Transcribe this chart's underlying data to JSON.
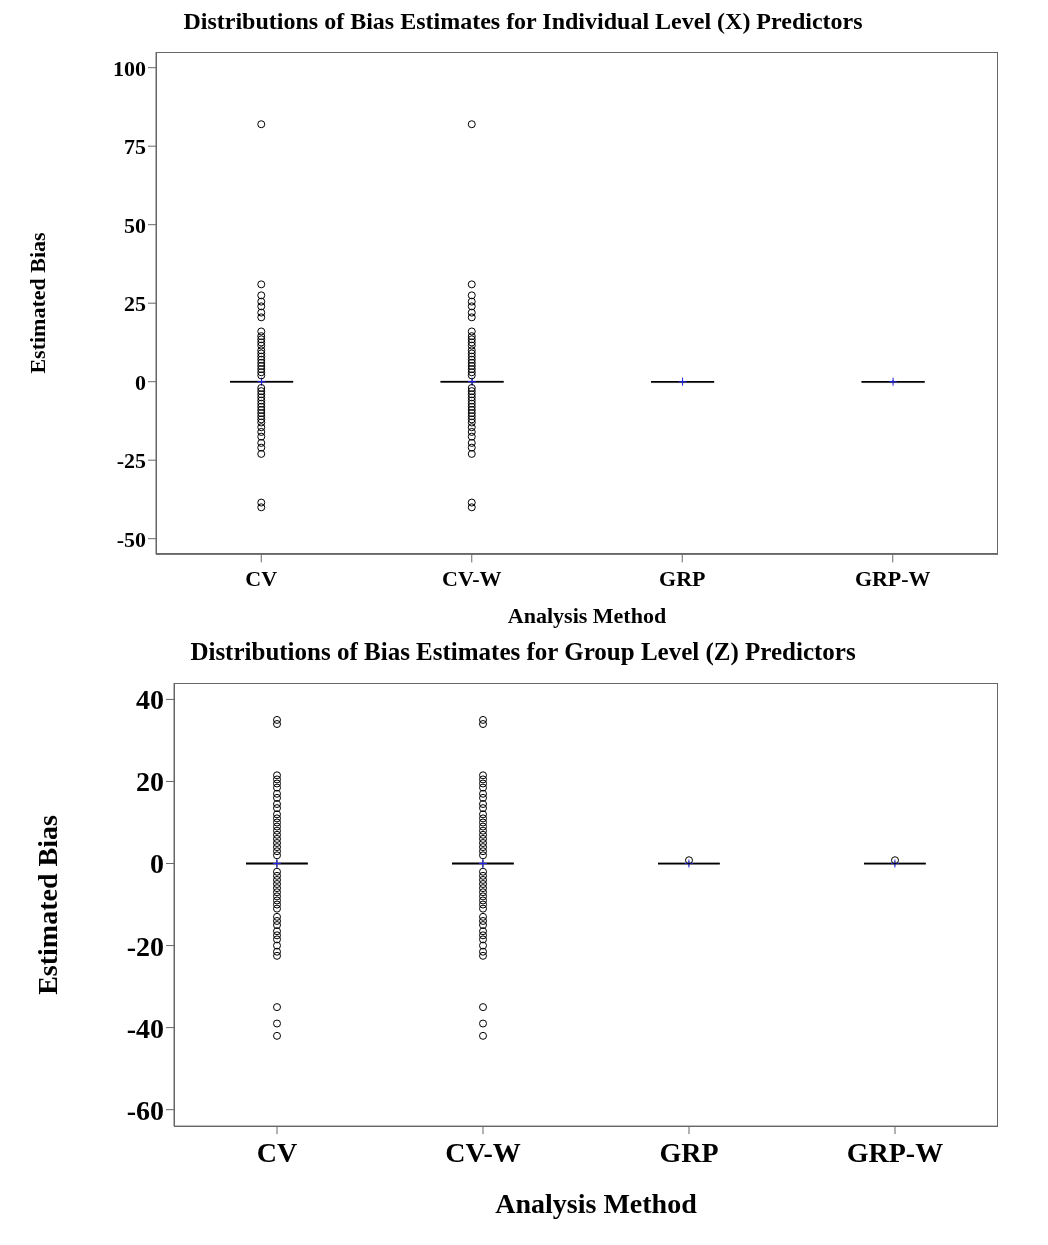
{
  "chart_data": [
    {
      "type": "box",
      "title": "Distributions of Bias Estimates for Individual Level (X) Predictors",
      "xlabel": "Analysis Method",
      "ylabel": "Estimated Bias",
      "categories": [
        "CV",
        "CV-W",
        "GRP",
        "GRP-W"
      ],
      "color": "#808080",
      "ylim": [
        -55,
        105
      ],
      "yticks": [
        -50,
        -25,
        0,
        25,
        50,
        75,
        100
      ],
      "boxes": [
        {
          "low": -1,
          "q1": -0.3,
          "median": 0,
          "q3": 0.3,
          "high": 1,
          "mean": 0,
          "outliers": [
            82,
            31,
            27.5,
            25.5,
            24,
            22,
            20.5,
            16,
            14.5,
            13.5,
            12.5,
            11.5,
            10,
            9,
            8,
            7,
            6,
            5,
            4,
            3,
            2,
            -2,
            -3,
            -4,
            -5,
            -6,
            -7,
            -8,
            -9,
            -10,
            -11,
            -12,
            -13,
            -14.5,
            -16,
            -17.5,
            -19.5,
            -21,
            -23,
            -38.5,
            -40
          ]
        },
        {
          "low": -1,
          "q1": -0.3,
          "median": 0,
          "q3": 0.3,
          "high": 1,
          "mean": 0,
          "outliers": [
            82,
            31,
            27.5,
            25.5,
            24,
            22,
            20.5,
            16,
            14.5,
            13.5,
            12.5,
            11.5,
            10,
            9,
            8,
            7,
            6,
            5,
            4,
            3,
            2,
            -2,
            -3,
            -4,
            -5,
            -6,
            -7,
            -8,
            -9,
            -10,
            -11,
            -12,
            -13,
            -14.5,
            -16,
            -17.5,
            -19.5,
            -21,
            -23,
            -38.5,
            -40
          ]
        },
        {
          "low": -0.5,
          "q1": -0.2,
          "median": 0,
          "q3": 0.2,
          "high": 0.5,
          "mean": 0
        },
        {
          "low": -0.5,
          "q1": -0.2,
          "median": 0,
          "q3": 0.2,
          "high": 0.5,
          "mean": 0
        }
      ]
    },
    {
      "type": "box",
      "title": "Distributions of Bias Estimates for Group Level (Z) Predictors",
      "xlabel": "Analysis Method",
      "ylabel": "Estimated Bias",
      "categories": [
        "CV",
        "CV-W",
        "GRP",
        "GRP-W"
      ],
      "color": "#808080",
      "ylim": [
        -64,
        44
      ],
      "yticks": [
        -60,
        -40,
        -20,
        0,
        20,
        40
      ],
      "boxes": [
        {
          "low": -1,
          "q1": -0.3,
          "median": 0,
          "q3": 0.3,
          "high": 1,
          "mean": 0,
          "outliers": [
            35,
            34,
            21.5,
            20.5,
            19.5,
            18.5,
            17,
            16,
            14.5,
            13.5,
            12,
            11,
            10,
            9,
            8,
            7,
            6,
            5,
            4,
            3,
            2,
            -2,
            -3,
            -4,
            -5,
            -6,
            -7,
            -8,
            -9,
            -10,
            -11,
            -13,
            -14,
            -15,
            -16.5,
            -17.5,
            -18.5,
            -20,
            -21.5,
            -22.5,
            -35,
            -39,
            -42
          ]
        },
        {
          "low": -1,
          "q1": -0.3,
          "median": 0,
          "q3": 0.3,
          "high": 1,
          "mean": 0,
          "outliers": [
            35,
            34,
            21.5,
            20.5,
            19.5,
            18.5,
            17,
            16,
            14.5,
            13.5,
            12,
            11,
            10,
            9,
            8,
            7,
            6,
            5,
            4,
            3,
            2,
            -2,
            -3,
            -4,
            -5,
            -6,
            -7,
            -8,
            -9,
            -10,
            -11,
            -13,
            -14,
            -15,
            -16.5,
            -17.5,
            -18.5,
            -20,
            -21.5,
            -22.5,
            -35,
            -39,
            -42
          ]
        },
        {
          "low": -0.5,
          "q1": -0.2,
          "median": 0,
          "q3": 0.2,
          "high": 0.5,
          "mean": 0,
          "outliers": [
            0.8
          ]
        },
        {
          "low": -0.5,
          "q1": -0.2,
          "median": 0,
          "q3": 0.2,
          "high": 0.5,
          "mean": 0,
          "outliers": [
            0.8
          ]
        }
      ]
    }
  ]
}
